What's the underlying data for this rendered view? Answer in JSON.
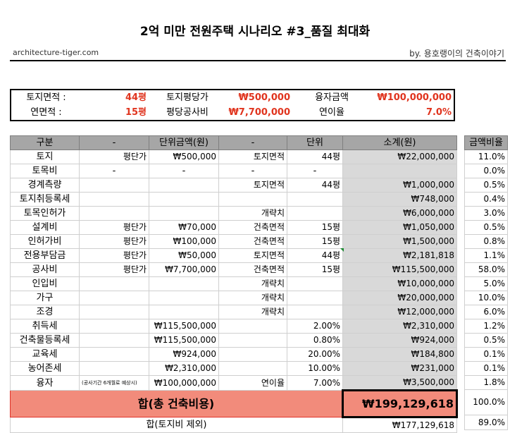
{
  "title": "2억 미만 전원주택 시나리오 #3_품질 최대화",
  "site": "architecture-tiger.com",
  "byline": "by. 용호랭이의 건축이야기",
  "info": {
    "row1": {
      "l1": "토지면적 :",
      "v1": "44평",
      "l2": "토지평당가",
      "v2": "₩500,000",
      "l3": "융자금액",
      "v3": "₩100,000,000"
    },
    "row2": {
      "l1": "연면적 :",
      "v1": "15평",
      "l2": "평당공사비",
      "v2": "₩7,700,000",
      "l3": "연이율",
      "v3": "7.0%"
    }
  },
  "headers": [
    "구분",
    "-",
    "단위금액(원)",
    "-",
    "단위",
    "소계(원)"
  ],
  "pct_header": "금액비율",
  "rows": [
    {
      "name": "토지",
      "a": "평단가",
      "b": "₩500,000",
      "c": "토지면적",
      "d": "44평",
      "e": "₩22,000,000",
      "p": "11.0%"
    },
    {
      "name": "토목비",
      "a": "-",
      "b": "-",
      "c": "-",
      "d": "-",
      "e": "",
      "p": "0.0%"
    },
    {
      "name": "경계측량",
      "a": "",
      "b": "",
      "c": "토지면적",
      "d": "44평",
      "e": "₩1,000,000",
      "p": "0.5%"
    },
    {
      "name": "토지취등록세",
      "a": "",
      "b": "",
      "c": "",
      "d": "",
      "e": "₩748,000",
      "p": "0.4%"
    },
    {
      "name": "토목인허가",
      "a": "",
      "b": "",
      "c": "개략치",
      "d": "",
      "e": "₩6,000,000",
      "p": "3.0%"
    },
    {
      "name": "설계비",
      "a": "평단가",
      "b": "₩70,000",
      "c": "건축면적",
      "d": "15평",
      "e": "₩1,050,000",
      "p": "0.5%"
    },
    {
      "name": "인허가비",
      "a": "평단가",
      "b": "₩100,000",
      "c": "건축면적",
      "d": "15평",
      "e": "₩1,500,000",
      "p": "0.8%"
    },
    {
      "name": "전용부담금",
      "a": "평단가",
      "b": "₩50,000",
      "c": "토지면적",
      "d": "44평",
      "e": "₩2,181,818",
      "p": "1.1%"
    },
    {
      "name": "공사비",
      "a": "평단가",
      "b": "₩7,700,000",
      "c": "건축면적",
      "d": "15평",
      "e": "₩115,500,000",
      "p": "58.0%"
    },
    {
      "name": "인입비",
      "a": "",
      "b": "",
      "c": "개략치",
      "d": "",
      "e": "₩10,000,000",
      "p": "5.0%"
    },
    {
      "name": "가구",
      "a": "",
      "b": "",
      "c": "개략치",
      "d": "",
      "e": "₩20,000,000",
      "p": "10.0%"
    },
    {
      "name": "조경",
      "a": "",
      "b": "",
      "c": "개략치",
      "d": "",
      "e": "₩12,000,000",
      "p": "6.0%"
    },
    {
      "name": "취득세",
      "a": "",
      "b": "₩115,500,000",
      "c": "",
      "d": "2.00%",
      "e": "₩2,310,000",
      "p": "1.2%"
    },
    {
      "name": "건축물등록세",
      "a": "",
      "b": "₩115,500,000",
      "c": "",
      "d": "0.80%",
      "e": "₩924,000",
      "p": "0.5%"
    },
    {
      "name": "교육세",
      "a": "",
      "b": "₩924,000",
      "c": "",
      "d": "20.00%",
      "e": "₩184,800",
      "p": "0.1%"
    },
    {
      "name": "농어존세",
      "a": "",
      "b": "₩2,310,000",
      "c": "",
      "d": "10.00%",
      "e": "₩231,000",
      "p": "0.1%"
    },
    {
      "name": "융자",
      "a": "(공사기간 6개월로 예상시)",
      "b": "₩100,000,000",
      "c": "연이율",
      "d": "7.00%",
      "e": "₩3,500,000",
      "p": "1.8%"
    }
  ],
  "total": {
    "label": "합(총 건축비용)",
    "value": "₩199,129,618",
    "pct": "100.0%"
  },
  "subtotal": {
    "label": "합(토지비 제외)",
    "value": "₩177,129,618",
    "pct": "89.0%"
  }
}
